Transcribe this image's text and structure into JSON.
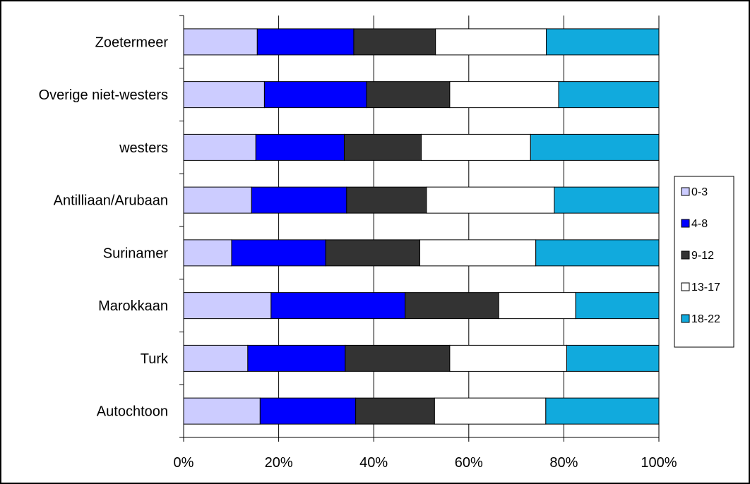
{
  "chart_data": {
    "type": "bar",
    "orientation": "horizontal",
    "stacked": "percent",
    "categories": [
      "Zoetermeer",
      "Overige niet-westers",
      "westers",
      "Antilliaan/Arubaan",
      "Surinamer",
      "Marokkaan",
      "Turk",
      "Autochtoon"
    ],
    "series": [
      {
        "name": "0-3",
        "color": "#ccccff",
        "values": [
          15.5,
          17.0,
          15.2,
          14.3,
          10.1,
          18.4,
          13.5,
          16.1
        ]
      },
      {
        "name": "4-8",
        "color": "#0000ff",
        "values": [
          20.3,
          21.5,
          18.6,
          20.0,
          19.8,
          28.2,
          20.5,
          20.1
        ]
      },
      {
        "name": "9-12",
        "color": "#333333",
        "values": [
          17.2,
          17.5,
          16.2,
          16.8,
          19.8,
          19.7,
          22.0,
          16.6
        ]
      },
      {
        "name": "13-17",
        "color": "#ffffff",
        "values": [
          23.3,
          22.9,
          23.0,
          26.9,
          24.4,
          16.2,
          24.6,
          23.4
        ]
      },
      {
        "name": "18-22",
        "color": "#11aadd",
        "values": [
          23.7,
          21.1,
          27.0,
          22.0,
          25.9,
          17.5,
          19.4,
          23.8
        ]
      }
    ],
    "xticks": [
      "0%",
      "20%",
      "40%",
      "60%",
      "80%",
      "100%"
    ],
    "xlim": [
      0,
      100
    ],
    "grid": "vertical",
    "legend": "right"
  }
}
